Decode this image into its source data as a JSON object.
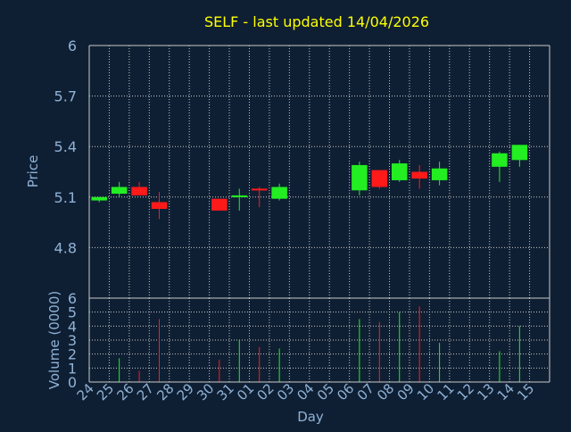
{
  "chart_data": {
    "type": "candlestick",
    "title": "SELF - last updated 14/04/2026",
    "xlabel": "Day",
    "ylabel": "Price",
    "volume_label": "Volume (0000)",
    "price_ylim": [
      4.5,
      6.0
    ],
    "price_ticks": [
      "4.8",
      "5.1",
      "5.4",
      "5.7",
      "6"
    ],
    "price_tick_values": [
      4.8,
      5.1,
      5.4,
      5.7,
      6.0
    ],
    "volume_ylim": [
      0,
      6
    ],
    "volume_ticks": [
      "0",
      "1",
      "2",
      "3",
      "4",
      "5",
      "6"
    ],
    "day_labels": [
      "24",
      "25",
      "26",
      "27",
      "28",
      "29",
      "30",
      "31",
      "01",
      "02",
      "03",
      "04",
      "05",
      "06",
      "07",
      "08",
      "09",
      "10",
      "11",
      "12",
      "13",
      "14",
      "15"
    ],
    "grid": true,
    "colors": {
      "background": "#0f1f33",
      "grid": "#c8c8c8",
      "up": "#22ee22",
      "down": "#ff1a1a",
      "title": "#ffff00",
      "axis_text": "#8fb2d6"
    },
    "candles": [
      {
        "day": "24",
        "open": 5.08,
        "high": 5.1,
        "low": 5.07,
        "close": 5.1
      },
      {
        "day": "25",
        "open": 5.12,
        "high": 5.19,
        "low": 5.1,
        "close": 5.16
      },
      {
        "day": "26",
        "open": 5.16,
        "high": 5.19,
        "low": 5.11,
        "close": 5.11
      },
      {
        "day": "27",
        "open": 5.07,
        "high": 5.13,
        "low": 4.97,
        "close": 5.03
      },
      {
        "day": "30",
        "open": 5.09,
        "high": 5.09,
        "low": 5.02,
        "close": 5.02
      },
      {
        "day": "31",
        "open": 5.11,
        "high": 5.15,
        "low": 5.02,
        "close": 5.11
      },
      {
        "day": "01",
        "open": 5.15,
        "high": 5.16,
        "low": 5.04,
        "close": 5.14
      },
      {
        "day": "02",
        "open": 5.09,
        "high": 5.18,
        "low": 5.08,
        "close": 5.16
      },
      {
        "day": "06",
        "open": 5.14,
        "high": 5.31,
        "low": 5.11,
        "close": 5.29
      },
      {
        "day": "07",
        "open": 5.26,
        "high": 5.26,
        "low": 5.15,
        "close": 5.16
      },
      {
        "day": "08",
        "open": 5.2,
        "high": 5.32,
        "low": 5.19,
        "close": 5.3
      },
      {
        "day": "09",
        "open": 5.25,
        "high": 5.29,
        "low": 5.15,
        "close": 5.21
      },
      {
        "day": "10",
        "open": 5.2,
        "high": 5.31,
        "low": 5.17,
        "close": 5.27
      },
      {
        "day": "13",
        "open": 5.28,
        "high": 5.37,
        "low": 5.19,
        "close": 5.36
      },
      {
        "day": "14",
        "open": 5.32,
        "high": 5.41,
        "low": 5.28,
        "close": 5.41
      }
    ],
    "volume": [
      {
        "day": "25",
        "value": 1.7,
        "dir": "up"
      },
      {
        "day": "26",
        "value": 0.8,
        "dir": "down"
      },
      {
        "day": "27",
        "value": 4.5,
        "dir": "down"
      },
      {
        "day": "30",
        "value": 1.6,
        "dir": "down"
      },
      {
        "day": "31",
        "value": 3.0,
        "dir": "up"
      },
      {
        "day": "01",
        "value": 2.5,
        "dir": "down"
      },
      {
        "day": "02",
        "value": 2.4,
        "dir": "up"
      },
      {
        "day": "06",
        "value": 4.5,
        "dir": "up"
      },
      {
        "day": "07",
        "value": 4.3,
        "dir": "down"
      },
      {
        "day": "08",
        "value": 5.0,
        "dir": "up"
      },
      {
        "day": "09",
        "value": 5.4,
        "dir": "down"
      },
      {
        "day": "10",
        "value": 2.8,
        "dir": "up"
      },
      {
        "day": "13",
        "value": 2.2,
        "dir": "up"
      },
      {
        "day": "14",
        "value": 4.0,
        "dir": "up"
      }
    ]
  }
}
